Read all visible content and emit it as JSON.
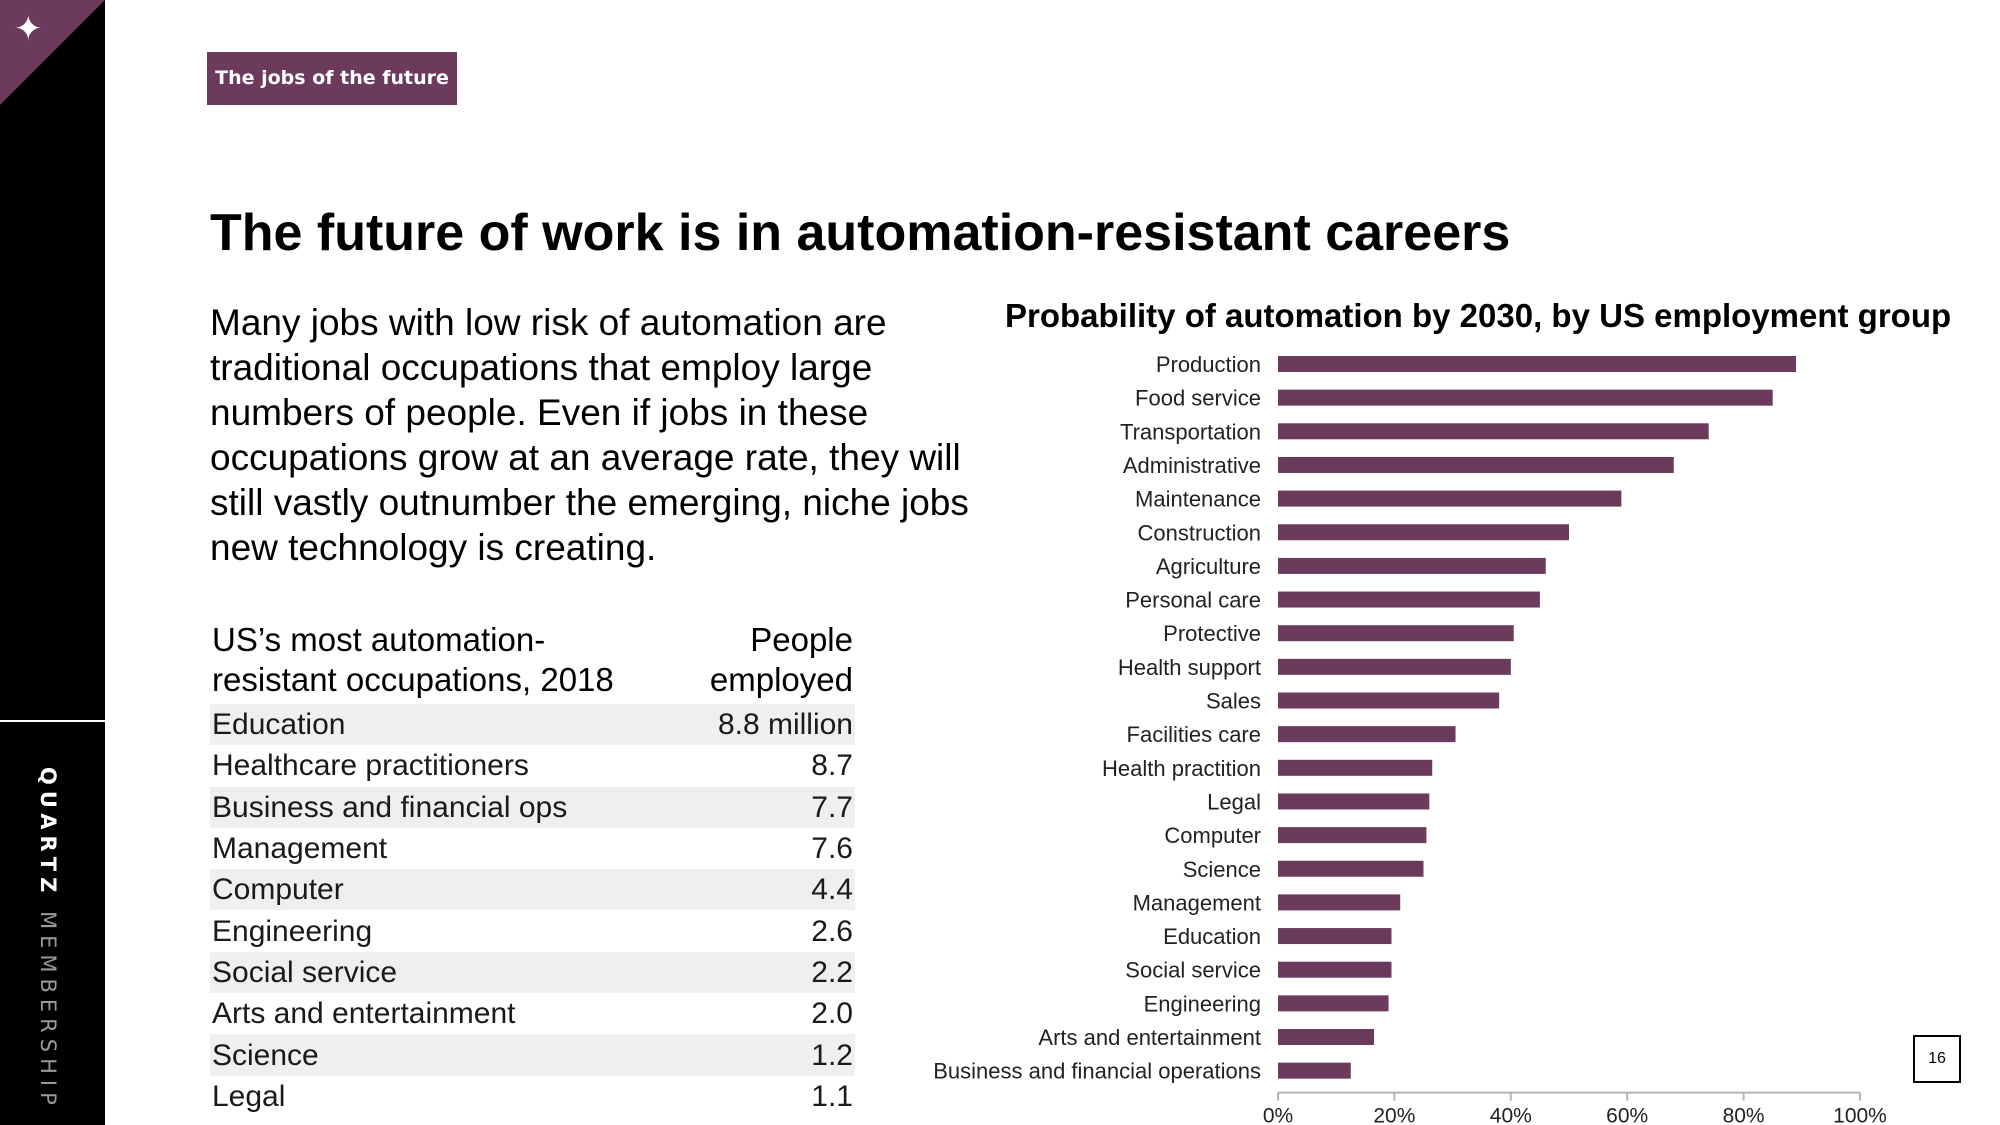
{
  "brand": {
    "strong": "QUARTZ",
    "light": "MEMBERSHIP",
    "star_icon": "sparkle-icon",
    "accent_color": "#6b3a5c"
  },
  "tag_label": "The jobs of the future",
  "headline": "The future of work is in automation-resistant careers",
  "intro": "Many jobs with low risk of automation are traditional occupations that employ large numbers of people. Even if jobs in these occupations grow at an average rate, they will still vastly outnumber the emerging, niche jobs new technology is creating.",
  "table": {
    "header_left": "US’s most automation-resistant occupations, 2018",
    "header_right": "People employed",
    "rows": [
      {
        "occupation": "Education",
        "people": "8.8 million"
      },
      {
        "occupation": "Healthcare practitioners",
        "people": "8.7"
      },
      {
        "occupation": "Business and financial ops",
        "people": "7.7"
      },
      {
        "occupation": "Management",
        "people": "7.6"
      },
      {
        "occupation": "Computer",
        "people": "4.4"
      },
      {
        "occupation": "Engineering",
        "people": "2.6"
      },
      {
        "occupation": "Social service",
        "people": "2.2"
      },
      {
        "occupation": "Arts and entertainment",
        "people": "2.0"
      },
      {
        "occupation": "Science",
        "people": "1.2"
      },
      {
        "occupation": "Legal",
        "people": "1.1"
      }
    ]
  },
  "chart_data": {
    "type": "bar",
    "orientation": "horizontal",
    "title": "Probability of automation by 2030, by US employment group",
    "categories": [
      "Production",
      "Food service",
      "Transportation",
      "Administrative",
      "Maintenance",
      "Construction",
      "Agriculture",
      "Personal care",
      "Protective",
      "Health support",
      "Sales",
      "Facilities care",
      "Health practition",
      "Legal",
      "Computer",
      "Science",
      "Management",
      "Education",
      "Social service",
      "Engineering",
      "Arts and entertainment",
      "Business and financial operations"
    ],
    "values": [
      89,
      85,
      74,
      68,
      59,
      50,
      46,
      45,
      40.5,
      40,
      38,
      30.5,
      26.5,
      26,
      25.5,
      25,
      21,
      19.5,
      19.5,
      19,
      16.5,
      12.5
    ],
    "xlim": [
      0,
      100
    ],
    "x_ticks": [
      "0%",
      "20%",
      "40%",
      "60%",
      "80%",
      "100%"
    ],
    "xlabel": "",
    "ylabel": "",
    "grid": false,
    "bar_color": "#6b3a5c"
  },
  "page_number": "16"
}
